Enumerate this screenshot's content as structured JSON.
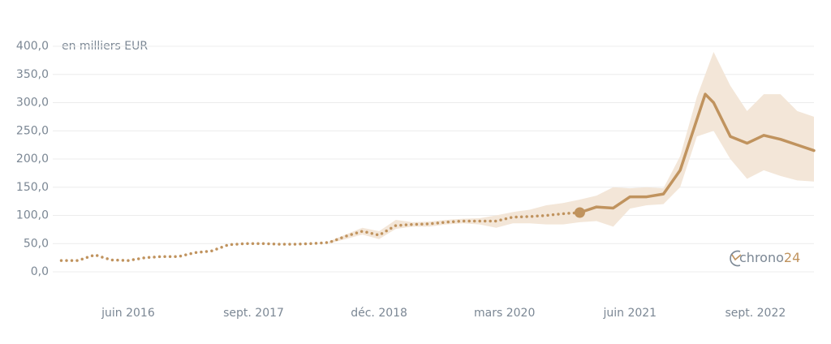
{
  "chart_data": {
    "type": "line",
    "y_label": "en milliers EUR",
    "logo": {
      "text": "chrono",
      "suffix": "24"
    },
    "ylim": [
      0,
      400
    ],
    "yticks": [
      {
        "value": 0,
        "label": "0,0"
      },
      {
        "value": 50,
        "label": "50,0"
      },
      {
        "value": 100,
        "label": "100,0"
      },
      {
        "value": 150,
        "label": "150,0"
      },
      {
        "value": 200,
        "label": "200,0"
      },
      {
        "value": 250,
        "label": "250,0"
      },
      {
        "value": 300,
        "label": "300,0"
      },
      {
        "value": 350,
        "label": "350,0"
      },
      {
        "value": 400,
        "label": "400,0"
      }
    ],
    "xlim": [
      "2015-10",
      "2023-04"
    ],
    "xticks": [
      {
        "value": "2016-06",
        "label": "juin 2016"
      },
      {
        "value": "2017-09",
        "label": "sept. 2017"
      },
      {
        "value": "2018-12",
        "label": "déc. 2018"
      },
      {
        "value": "2020-03",
        "label": "mars 2020"
      },
      {
        "value": "2021-06",
        "label": "juin 2021"
      },
      {
        "value": "2022-09",
        "label": "sept. 2022"
      }
    ],
    "grid": true,
    "band": {
      "color": "#f3e6d8",
      "x": [
        "2018-06",
        "2018-08",
        "2018-10",
        "2018-12",
        "2019-02",
        "2019-04",
        "2019-06",
        "2019-08",
        "2019-10",
        "2019-12",
        "2020-02",
        "2020-04",
        "2020-06",
        "2020-08",
        "2020-10",
        "2020-12",
        "2021-02",
        "2021-04",
        "2021-06",
        "2021-08",
        "2021-10",
        "2021-12",
        "2022-02",
        "2022-04",
        "2022-06",
        "2022-08",
        "2022-10",
        "2022-12",
        "2023-02",
        "2023-04"
      ],
      "lower": [
        50,
        58,
        66,
        58,
        76,
        80,
        80,
        84,
        86,
        84,
        78,
        86,
        86,
        84,
        84,
        88,
        90,
        80,
        112,
        118,
        120,
        150,
        240,
        250,
        200,
        165,
        180,
        170,
        162,
        160
      ],
      "upper": [
        54,
        66,
        78,
        72,
        92,
        88,
        89,
        92,
        94,
        95,
        100,
        106,
        110,
        118,
        122,
        128,
        135,
        150,
        148,
        150,
        148,
        205,
        310,
        390,
        330,
        285,
        315,
        315,
        285,
        275
      ]
    },
    "series": [
      {
        "color": "#c0935e",
        "style": "dotted",
        "end_marker": true,
        "x": [
          "2015-10",
          "2015-12",
          "2016-02",
          "2016-04",
          "2016-06",
          "2016-08",
          "2016-10",
          "2016-12",
          "2017-02",
          "2017-04",
          "2017-06",
          "2017-08",
          "2017-10",
          "2017-12",
          "2018-02",
          "2018-04",
          "2018-06",
          "2018-08",
          "2018-10",
          "2018-12",
          "2019-02",
          "2019-04",
          "2019-06",
          "2019-08",
          "2019-10",
          "2019-12",
          "2020-02",
          "2020-04",
          "2020-06",
          "2020-08",
          "2020-10",
          "2020-12"
        ],
        "values": [
          20,
          20,
          30,
          21,
          20,
          25,
          27,
          27,
          34,
          37,
          48,
          50,
          50,
          49,
          49,
          50,
          52,
          63,
          72,
          65,
          82,
          84,
          85,
          88,
          90,
          90,
          90,
          97,
          98,
          100,
          103,
          105
        ]
      },
      {
        "color": "#c0935e",
        "style": "solid",
        "x": [
          "2020-12",
          "2021-02",
          "2021-04",
          "2021-06",
          "2021-08",
          "2021-10",
          "2021-12",
          "2022-02",
          "2022-03",
          "2022-04",
          "2022-06",
          "2022-08",
          "2022-10",
          "2022-12",
          "2023-02",
          "2023-04"
        ],
        "values": [
          105,
          115,
          113,
          133,
          133,
          138,
          180,
          270,
          315,
          300,
          240,
          228,
          242,
          235,
          225,
          215
        ]
      }
    ]
  }
}
